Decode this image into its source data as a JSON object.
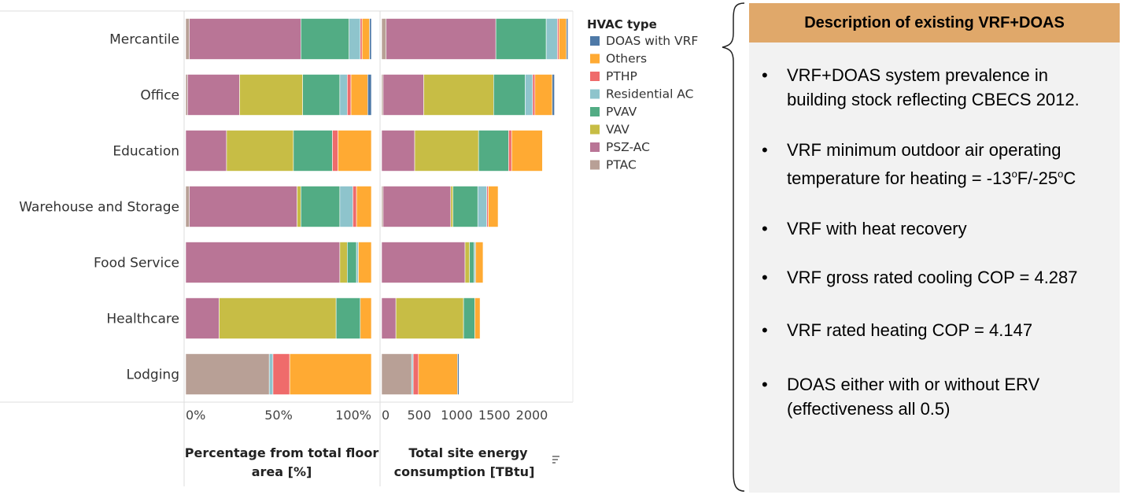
{
  "colors": {
    "DOAS with VRF": "#4e79a7",
    "Others": "#ffaa33",
    "PTHP": "#ef6b6b",
    "Residential AC": "#8ec4cc",
    "PVAV": "#52ac84",
    "VAV": "#c7bd45",
    "PSZ-AC": "#b97596",
    "PTAC": "#b8a096"
  },
  "legend": {
    "title": "HVAC type",
    "items": [
      "DOAS with VRF",
      "Others",
      "PTHP",
      "Residential AC",
      "PVAV",
      "VAV",
      "PSZ-AC",
      "PTAC"
    ]
  },
  "chart_data": [
    {
      "type": "bar",
      "orientation": "horizontal",
      "stacked": true,
      "xlabel": "Percentage from total floor area [%]",
      "xlim": [
        0,
        100
      ],
      "x_ticks": [
        "0%",
        "50%",
        "100%"
      ],
      "categories": [
        "Mercantile",
        "Office",
        "Education",
        "Warehouse and Storage",
        "Food Service",
        "Healthcare",
        "Lodging"
      ],
      "series": [
        {
          "name": "PTAC",
          "values": [
            2,
            1,
            0,
            2,
            0,
            0,
            45
          ]
        },
        {
          "name": "PSZ-AC",
          "values": [
            60,
            28,
            22,
            58,
            83,
            18,
            0
          ]
        },
        {
          "name": "VAV",
          "values": [
            0,
            34,
            36,
            2,
            4,
            63,
            0
          ]
        },
        {
          "name": "PVAV",
          "values": [
            26,
            20,
            21,
            21,
            5,
            13,
            0
          ]
        },
        {
          "name": "Residential AC",
          "values": [
            6,
            4,
            0,
            7,
            1,
            0,
            2
          ]
        },
        {
          "name": "PTHP",
          "values": [
            1,
            2,
            3,
            2,
            0,
            0,
            9
          ]
        },
        {
          "name": "Others",
          "values": [
            4,
            9,
            18,
            8,
            7,
            6,
            44
          ]
        },
        {
          "name": "DOAS with VRF",
          "values": [
            1,
            2,
            0,
            0,
            0,
            0,
            0
          ]
        }
      ]
    },
    {
      "type": "bar",
      "orientation": "horizontal",
      "stacked": true,
      "xlabel": "Total site energy consumption [TBtu]",
      "xlim": [
        0,
        2400
      ],
      "x_ticks": [
        "0",
        "500",
        "1000",
        "1500",
        "2000"
      ],
      "x_tick_values": [
        0,
        500,
        1000,
        1500,
        2000
      ],
      "sort_indicator": true,
      "categories": [
        "Mercantile",
        "Office",
        "Education",
        "Warehouse and Storage",
        "Food Service",
        "Healthcare",
        "Lodging"
      ],
      "series": [
        {
          "name": "PTAC",
          "values": [
            60,
            20,
            0,
            20,
            0,
            0,
            400
          ]
        },
        {
          "name": "PSZ-AC",
          "values": [
            1460,
            540,
            440,
            900,
            1110,
            190,
            0
          ]
        },
        {
          "name": "VAV",
          "values": [
            0,
            930,
            850,
            30,
            60,
            900,
            0
          ]
        },
        {
          "name": "PVAV",
          "values": [
            670,
            420,
            400,
            330,
            60,
            150,
            0
          ]
        },
        {
          "name": "Residential AC",
          "values": [
            150,
            100,
            0,
            120,
            20,
            0,
            20
          ]
        },
        {
          "name": "PTHP",
          "values": [
            20,
            30,
            40,
            20,
            0,
            0,
            70
          ]
        },
        {
          "name": "Others",
          "values": [
            100,
            230,
            410,
            130,
            100,
            70,
            520
          ]
        },
        {
          "name": "DOAS with VRF",
          "values": [
            20,
            30,
            0,
            0,
            0,
            0,
            20
          ]
        }
      ]
    }
  ],
  "panel": {
    "title": "Description of existing VRF+DOAS",
    "bullets": [
      "VRF+DOAS system prevalence in building stock reflecting CBECS 2012.",
      "VRF minimum outdoor air operating temperature for heating = -13oF/-25oC",
      "VRF with heat recovery",
      "VRF gross rated cooling COP = 4.287",
      "VRF rated heating COP = 4.147",
      "DOAS either with or without ERV (effectiveness all 0.5)"
    ],
    "bullet_glyph": "•"
  }
}
